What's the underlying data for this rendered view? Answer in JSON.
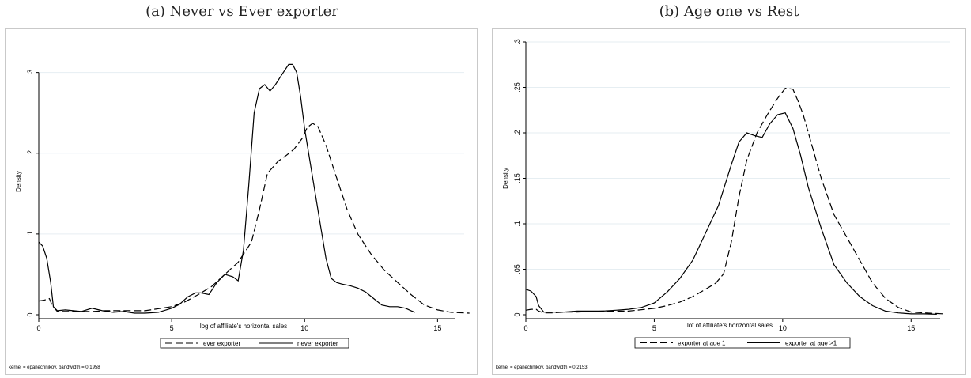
{
  "chart_data": [
    {
      "type": "line",
      "title": "(a) Never vs Ever exporter",
      "xlabel": "log of affiliate's horizontal sales",
      "ylabel": "Density",
      "xlim": [
        0,
        16
      ],
      "ylim": [
        0,
        0.33
      ],
      "xticks": [
        0,
        5,
        10,
        15
      ],
      "yticks": [
        0,
        0.1,
        0.2,
        0.3
      ],
      "xtick_labels": [
        "0",
        "5",
        "10",
        "15"
      ],
      "ytick_labels": [
        "0",
        ".1",
        ".2",
        ".3"
      ],
      "grid": true,
      "legend_position": "bottom",
      "note": "kernel = epanechnikov, bandwidth = 0.1958",
      "series": [
        {
          "name": "ever exporter",
          "style": "dashed",
          "x": [
            0,
            0.2,
            0.4,
            0.5,
            0.7,
            1,
            1.5,
            2,
            2.5,
            3,
            4,
            5,
            5.5,
            6,
            6.5,
            7,
            7.5,
            8,
            8.3,
            8.6,
            9,
            9.3,
            9.6,
            9.9,
            10.1,
            10.3,
            10.5,
            10.8,
            11.2,
            11.6,
            12,
            12.5,
            13,
            13.5,
            14,
            14.5,
            15,
            15.5,
            16.2
          ],
          "y": [
            0.017,
            0.018,
            0.02,
            0.012,
            0.004,
            0.004,
            0.004,
            0.004,
            0.005,
            0.005,
            0.005,
            0.01,
            0.016,
            0.025,
            0.035,
            0.05,
            0.065,
            0.09,
            0.13,
            0.175,
            0.19,
            0.197,
            0.205,
            0.218,
            0.232,
            0.237,
            0.233,
            0.21,
            0.17,
            0.13,
            0.1,
            0.075,
            0.055,
            0.04,
            0.025,
            0.012,
            0.006,
            0.003,
            0.002
          ]
        },
        {
          "name": "never exporter",
          "style": "solid",
          "x": [
            0,
            0.15,
            0.3,
            0.45,
            0.55,
            0.7,
            1,
            1.3,
            1.6,
            2,
            2.4,
            2.8,
            3.2,
            3.6,
            4,
            4.5,
            5,
            5.3,
            5.6,
            5.9,
            6.1,
            6.4,
            6.7,
            7,
            7.3,
            7.5,
            7.7,
            7.9,
            8.1,
            8.3,
            8.5,
            8.7,
            8.9,
            9.2,
            9.4,
            9.55,
            9.7,
            9.85,
            10,
            10.2,
            10.4,
            10.6,
            10.8,
            11.0,
            11.2,
            11.4,
            11.7,
            12,
            12.3,
            12.6,
            12.9,
            13.2,
            13.5,
            13.8,
            14.0,
            14.15
          ],
          "y": [
            0.09,
            0.085,
            0.07,
            0.04,
            0.01,
            0.005,
            0.006,
            0.005,
            0.004,
            0.008,
            0.005,
            0.003,
            0.004,
            0.002,
            0.002,
            0.003,
            0.008,
            0.013,
            0.022,
            0.027,
            0.027,
            0.025,
            0.04,
            0.05,
            0.047,
            0.042,
            0.08,
            0.16,
            0.25,
            0.28,
            0.285,
            0.277,
            0.285,
            0.3,
            0.31,
            0.31,
            0.3,
            0.27,
            0.23,
            0.19,
            0.15,
            0.11,
            0.07,
            0.045,
            0.04,
            0.038,
            0.036,
            0.033,
            0.028,
            0.02,
            0.012,
            0.01,
            0.01,
            0.008,
            0.005,
            0.003
          ]
        }
      ]
    },
    {
      "type": "line",
      "title": "(b) Age one vs Rest",
      "xlabel": "lof of affiliate's horizontal sales",
      "ylabel": "Density",
      "xlim": [
        0,
        16.5
      ],
      "ylim": [
        0,
        0.3
      ],
      "xticks": [
        0,
        5,
        10,
        15
      ],
      "yticks": [
        0,
        0.05,
        0.1,
        0.15,
        0.2,
        0.25,
        0.3
      ],
      "xtick_labels": [
        "0",
        "5",
        "10",
        "15"
      ],
      "ytick_labels": [
        "0",
        ".05",
        ".1",
        ".15",
        ".2",
        ".25",
        ".3"
      ],
      "grid": true,
      "legend_position": "bottom",
      "note": "kernel = epanechnikov, bandwidth = 0.2153",
      "series": [
        {
          "name": "exporter at age 1",
          "style": "dashed",
          "x": [
            0,
            0.2,
            0.4,
            0.5,
            0.7,
            1,
            1.5,
            2,
            3,
            4,
            5,
            5.5,
            6,
            6.5,
            7,
            7.4,
            7.7,
            8,
            8.3,
            8.6,
            9,
            9.4,
            9.8,
            10.1,
            10.4,
            10.6,
            10.8,
            11.1,
            11.5,
            12,
            12.5,
            13,
            13.5,
            14,
            14.5,
            15,
            15.5,
            16.3
          ],
          "y": [
            0.005,
            0.006,
            0.006,
            0.004,
            0.002,
            0.002,
            0.003,
            0.003,
            0.004,
            0.004,
            0.007,
            0.01,
            0.014,
            0.02,
            0.028,
            0.035,
            0.045,
            0.08,
            0.13,
            0.17,
            0.2,
            0.22,
            0.238,
            0.249,
            0.248,
            0.235,
            0.22,
            0.19,
            0.15,
            0.11,
            0.085,
            0.06,
            0.035,
            0.018,
            0.008,
            0.003,
            0.002,
            0.001
          ]
        },
        {
          "name": "exporter at age >1",
          "style": "solid",
          "x": [
            0,
            0.2,
            0.4,
            0.5,
            0.7,
            1,
            1.5,
            2,
            2.5,
            3,
            3.5,
            4,
            4.5,
            5,
            5.5,
            6,
            6.5,
            7,
            7.5,
            8,
            8.3,
            8.6,
            8.9,
            9.2,
            9.5,
            9.8,
            10.1,
            10.4,
            10.7,
            11,
            11.5,
            12,
            12.5,
            13,
            13.5,
            14,
            14.5,
            15,
            15.5,
            16
          ],
          "y": [
            0.028,
            0.026,
            0.02,
            0.01,
            0.003,
            0.003,
            0.003,
            0.004,
            0.004,
            0.004,
            0.005,
            0.006,
            0.008,
            0.013,
            0.025,
            0.04,
            0.06,
            0.09,
            0.12,
            0.165,
            0.19,
            0.2,
            0.197,
            0.195,
            0.21,
            0.22,
            0.222,
            0.205,
            0.175,
            0.14,
            0.095,
            0.055,
            0.035,
            0.02,
            0.01,
            0.004,
            0.002,
            0.001,
            0.001,
            0.0005
          ]
        }
      ]
    }
  ]
}
